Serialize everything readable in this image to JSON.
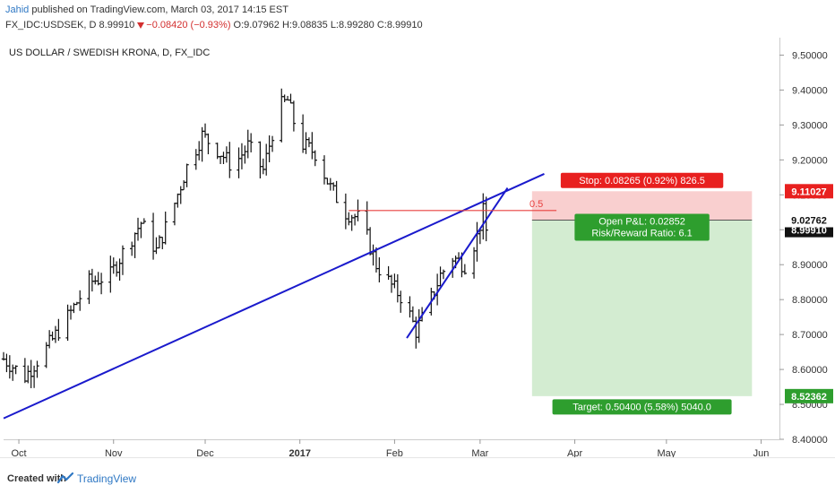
{
  "header": {
    "author": "Jahid",
    "published": "published on TradingView.com, March 03, 2017 14:15 EST",
    "symbol": "FX_IDC:USDSEK, D",
    "last": "8.99910",
    "change": "−0.08420 (−0.93%)",
    "ohlc": {
      "o": "O:9.07962",
      "h": "H:9.08835",
      "l": "L:8.99280",
      "c": "C:8.99910"
    }
  },
  "chart_title": "US DOLLAR / SWEDISH KRONA, D, FX_IDC",
  "footer": {
    "created_with": "Created with",
    "brand": "TradingView"
  },
  "colors": {
    "trendline": "#1a1acc",
    "stop_zone": "#f9cfcf",
    "target_zone": "#d3ecd1",
    "red_label": "#e8201f",
    "green_label": "#2e9e2e",
    "bars": "#111111"
  },
  "chart_data": {
    "type": "ohlc",
    "ylim": [
      8.4,
      9.55
    ],
    "y_ticks": [
      9.5,
      9.4,
      9.3,
      9.2,
      9.1,
      9.0,
      8.9,
      8.8,
      8.7,
      8.6,
      8.5,
      8.4
    ],
    "y_tick_labels": [
      "9.50000",
      "9.40000",
      "9.30000",
      "9.20000",
      "9.10000",
      "9.00000",
      "8.90000",
      "8.80000",
      "8.70000",
      "8.60000",
      "8.50000",
      "8.40000"
    ],
    "x_start": "2016-09-26",
    "x_end": "2017-06-07",
    "x_ticks": [
      {
        "date": "2016-10-01",
        "label": "Oct",
        "bold": false
      },
      {
        "date": "2016-11-01",
        "label": "Nov",
        "bold": false
      },
      {
        "date": "2016-12-01",
        "label": "Dec",
        "bold": false
      },
      {
        "date": "2017-01-01",
        "label": "2017",
        "bold": true
      },
      {
        "date": "2017-02-01",
        "label": "Feb",
        "bold": false
      },
      {
        "date": "2017-03-01",
        "label": "Mar",
        "bold": false
      },
      {
        "date": "2017-04-01",
        "label": "Apr",
        "bold": false
      },
      {
        "date": "2017-05-01",
        "label": "May",
        "bold": false
      },
      {
        "date": "2017-06-01",
        "label": "Jun",
        "bold": false
      }
    ],
    "price_path": [
      [
        "2016-09-26",
        8.63
      ],
      [
        "2016-10-03",
        8.58
      ],
      [
        "2016-10-10",
        8.66
      ],
      [
        "2016-10-17",
        8.75
      ],
      [
        "2016-10-24",
        8.85
      ],
      [
        "2016-10-31",
        8.87
      ],
      [
        "2016-11-05",
        8.95
      ],
      [
        "2016-11-10",
        9.02
      ],
      [
        "2016-11-15",
        8.94
      ],
      [
        "2016-11-20",
        9.05
      ],
      [
        "2016-11-25",
        9.18
      ],
      [
        "2016-11-30",
        9.27
      ],
      [
        "2016-12-05",
        9.23
      ],
      [
        "2016-12-10",
        9.18
      ],
      [
        "2016-12-15",
        9.24
      ],
      [
        "2016-12-20",
        9.17
      ],
      [
        "2016-12-25",
        9.35
      ],
      [
        "2016-12-28",
        9.37
      ],
      [
        "2017-01-01",
        9.25
      ],
      [
        "2017-01-06",
        9.22
      ],
      [
        "2017-01-11",
        9.12
      ],
      [
        "2017-01-16",
        9.05
      ],
      [
        "2017-01-21",
        9.03
      ],
      [
        "2017-01-26",
        8.9
      ],
      [
        "2017-01-31",
        8.84
      ],
      [
        "2017-02-04",
        8.8
      ],
      [
        "2017-02-08",
        8.71
      ],
      [
        "2017-02-12",
        8.78
      ],
      [
        "2017-02-16",
        8.87
      ],
      [
        "2017-02-20",
        8.92
      ],
      [
        "2017-02-24",
        8.9
      ],
      [
        "2017-02-28",
        8.98
      ],
      [
        "2017-03-02",
        9.05
      ],
      [
        "2017-03-03",
        8.9991
      ]
    ],
    "last_price": 8.9991,
    "last_price_label": "8.99910",
    "trendlines": [
      {
        "from": [
          "2016-09-26",
          8.46
        ],
        "to": [
          "2017-03-22",
          9.16
        ]
      },
      {
        "from": [
          "2017-02-05",
          8.69
        ],
        "to": [
          "2017-03-10",
          9.12
        ]
      }
    ],
    "level_line": {
      "from": "2017-01-17",
      "to": "2017-03-26",
      "y": 9.055,
      "label": "0.5"
    },
    "position": {
      "from": "2017-03-18",
      "to": "2017-05-29",
      "entry": 9.02762,
      "stop": 9.11027,
      "target": 8.52362,
      "entry_label": "9.02762",
      "stop_price_label": "9.11027",
      "target_price_label": "8.52362",
      "stop_text": "Stop: 0.08265 (0.92%) 826.5",
      "pnl_text": "Open P&L: 0.02852",
      "rr_text": "Risk/Reward Ratio: 6.1",
      "target_text": "Target: 0.50400 (5.58%) 5040.0"
    }
  }
}
